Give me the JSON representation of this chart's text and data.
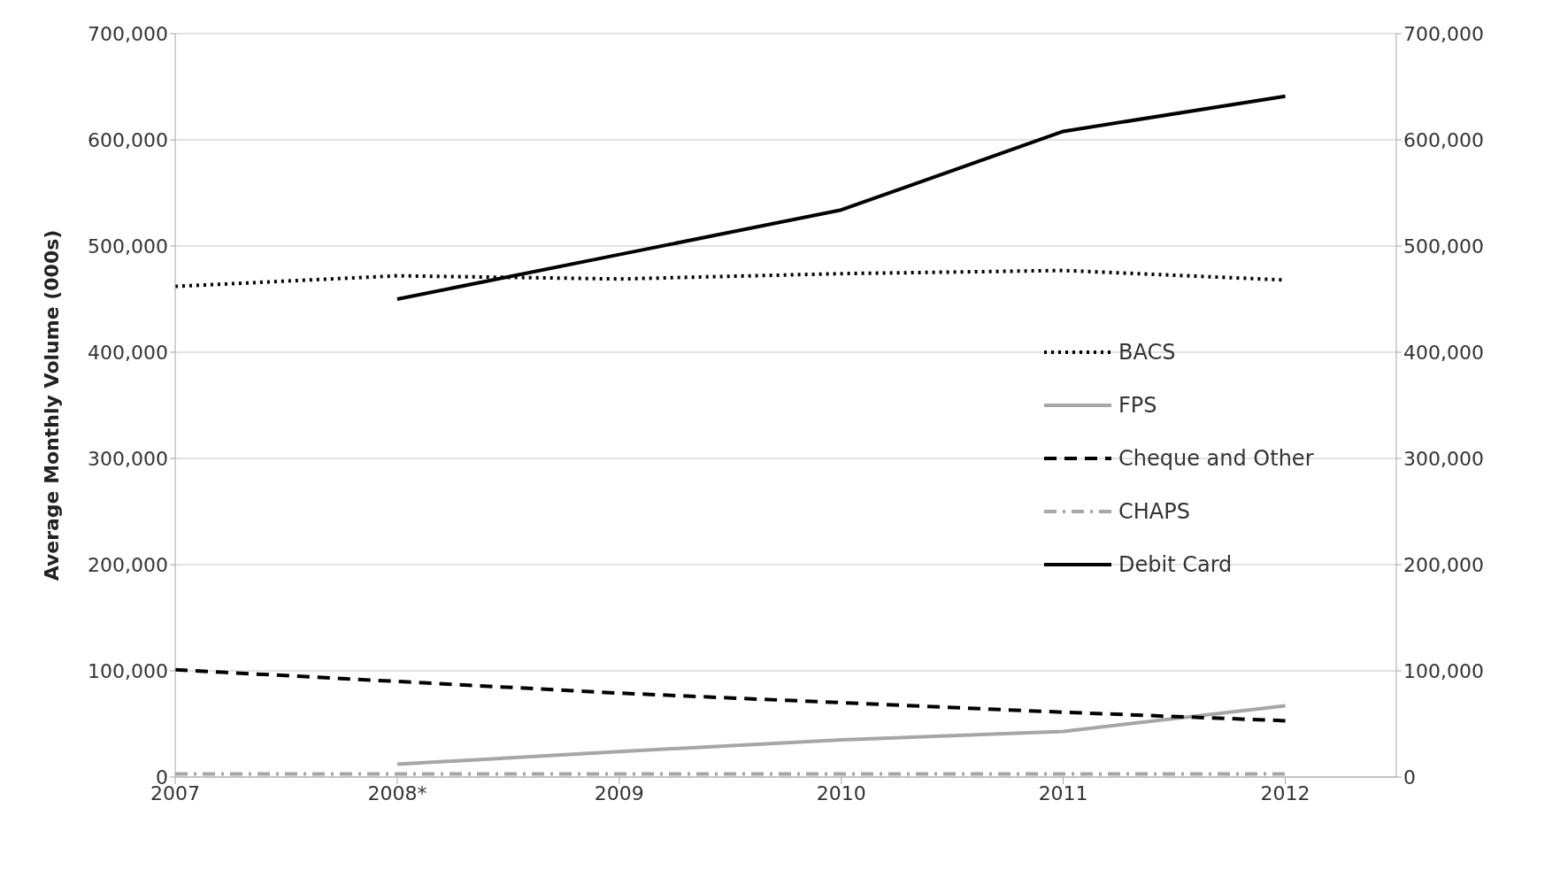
{
  "chart_data": {
    "type": "line",
    "ylabel": "Average Monthly Volume (000s)",
    "categories": [
      "2007",
      "2008*",
      "2009",
      "2010",
      "2011",
      "2012"
    ],
    "series": [
      {
        "name": "BACS",
        "color": "#000000",
        "line_style": "dotted",
        "values": [
          462000,
          472000,
          469000,
          474000,
          477000,
          468000
        ]
      },
      {
        "name": "FPS",
        "color": "#a6a6a6",
        "line_style": "solid",
        "values": [
          null,
          12000,
          24000,
          35000,
          43000,
          67000
        ]
      },
      {
        "name": "Cheque and Other",
        "color": "#000000",
        "line_style": "dashed",
        "values": [
          101000,
          90000,
          79000,
          70000,
          61000,
          53000
        ]
      },
      {
        "name": "CHAPS",
        "color": "#a6a6a6",
        "line_style": "dashdot",
        "values": [
          3000,
          3000,
          3000,
          3000,
          3000,
          3000
        ]
      },
      {
        "name": "Debit Card",
        "color": "#000000",
        "line_style": "solid",
        "values": [
          null,
          450000,
          492000,
          534000,
          608000,
          641000
        ]
      }
    ],
    "ylim": [
      0,
      700000
    ],
    "yticks": [
      0,
      {
        "value": 100000,
        "label": "100,000"
      },
      {
        "value": 200000,
        "label": "200,000"
      },
      {
        "value": 300000,
        "label": "300,000"
      },
      {
        "value": 400000,
        "label": "400,000"
      },
      {
        "value": 500000,
        "label": "500,000"
      },
      {
        "value": 600000,
        "label": "600,000"
      },
      {
        "value": 700000,
        "label": "700,000"
      }
    ],
    "y2lim": [
      0,
      700000
    ],
    "y2ticks": [
      0,
      {
        "value": 100000,
        "label": "100,000"
      },
      {
        "value": 200000,
        "label": "200,000"
      },
      {
        "value": 300000,
        "label": "300,000"
      },
      {
        "value": 400000,
        "label": "400,000"
      },
      {
        "value": 500000,
        "label": "500,000"
      },
      {
        "value": 600000,
        "label": "600,000"
      },
      {
        "value": 700000,
        "label": "700,000"
      }
    ],
    "grid": "y",
    "legend": "right",
    "marker": "none"
  }
}
